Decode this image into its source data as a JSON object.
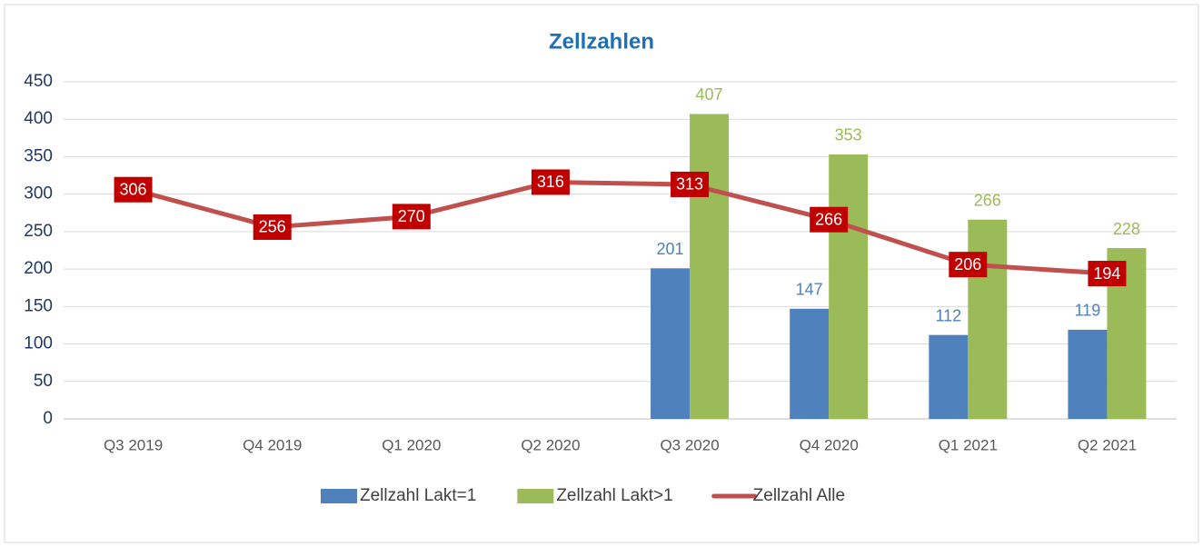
{
  "chart_data": {
    "type": "bar",
    "title": "Zellzahlen",
    "categories": [
      "Q3 2019",
      "Q4 2019",
      "Q1 2020",
      "Q2 2020",
      "Q3 2020",
      "Q4 2020",
      "Q1 2021",
      "Q2 2021"
    ],
    "series": [
      {
        "name": "Zellzahl Lakt=1",
        "type": "bar",
        "color": "#4f81bd",
        "values": [
          null,
          null,
          null,
          null,
          201,
          147,
          112,
          119
        ]
      },
      {
        "name": "Zellzahl Lakt>1",
        "type": "bar",
        "color": "#9bbb59",
        "values": [
          null,
          null,
          null,
          null,
          407,
          353,
          266,
          228
        ]
      },
      {
        "name": "Zellzahl Alle",
        "type": "line",
        "color": "#c0504d",
        "label_background": "#c00000",
        "values": [
          306,
          256,
          270,
          316,
          313,
          266,
          206,
          194
        ]
      }
    ],
    "ylim": [
      0,
      450
    ],
    "yticks": [
      0,
      50,
      100,
      150,
      200,
      250,
      300,
      350,
      400,
      450
    ],
    "grid": true,
    "legend": "bottom"
  }
}
